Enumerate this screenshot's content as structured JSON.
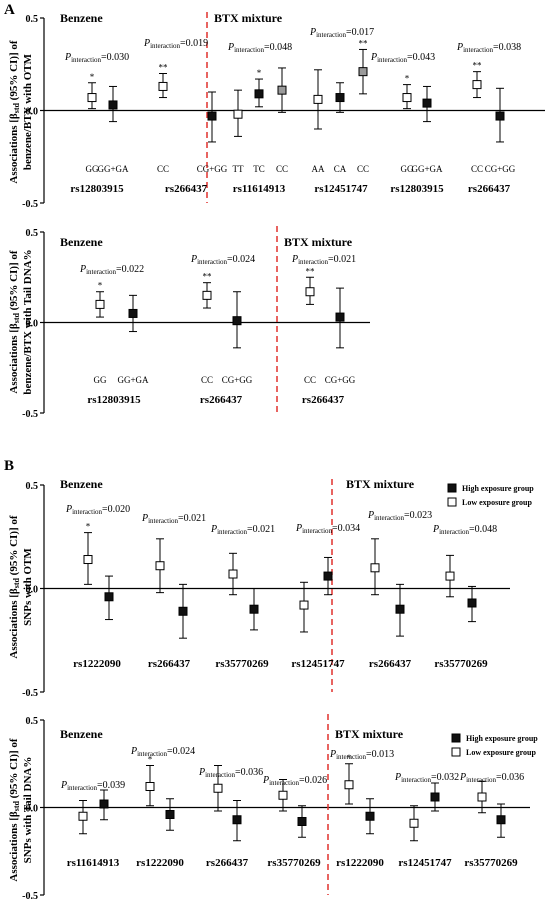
{
  "chart_data": [
    {
      "type": "scatter",
      "panel_letter": "A",
      "ylabel": "Associations [βstd (95% CI)] of benzene/BTX with OTM",
      "ylabel_parts": [
        "Associations [β",
        "std",
        " (95% CI)] of",
        "benzene/BTX with OTM"
      ],
      "yticks": [
        "0.5",
        "0.0",
        "-0.5"
      ],
      "ylim": [
        -0.5,
        0.5
      ],
      "sections": [
        "Benzene",
        "BTX mixture"
      ],
      "pvalue_prefix": "P",
      "pvalue_sub": "interaction",
      "groups": [
        {
          "snp": "rs12803915",
          "section": "Benzene",
          "p": "=0.030",
          "points": [
            {
              "label": "GG",
              "estimate": 0.07,
              "lower": 0.01,
              "upper": 0.15,
              "marker": "open",
              "sig": "*"
            },
            {
              "label": "GG+GA",
              "estimate": 0.03,
              "lower": -0.06,
              "upper": 0.13,
              "marker": "filled",
              "sig": ""
            }
          ]
        },
        {
          "snp": "rs266437",
          "section": "Benzene",
          "p": "=0.019",
          "points": [
            {
              "label": "CC",
              "estimate": 0.13,
              "lower": 0.07,
              "upper": 0.2,
              "marker": "open",
              "sig": "**"
            },
            {
              "label": "CG+GG",
              "estimate": -0.03,
              "lower": -0.17,
              "upper": 0.1,
              "marker": "filled",
              "sig": ""
            }
          ]
        },
        {
          "snp": "rs11614913",
          "section": "BTX mixture",
          "p": "=0.048",
          "points": [
            {
              "label": "TT",
              "estimate": -0.02,
              "lower": -0.14,
              "upper": 0.11,
              "marker": "open",
              "sig": ""
            },
            {
              "label": "TC",
              "estimate": 0.09,
              "lower": 0.02,
              "upper": 0.17,
              "marker": "filled",
              "sig": "*"
            },
            {
              "label": "CC",
              "estimate": 0.11,
              "lower": -0.01,
              "upper": 0.23,
              "marker": "gray",
              "sig": ""
            }
          ]
        },
        {
          "snp": "rs12451747",
          "section": "BTX mixture",
          "p": "=0.017",
          "points": [
            {
              "label": "AA",
              "estimate": 0.06,
              "lower": -0.1,
              "upper": 0.22,
              "marker": "open",
              "sig": ""
            },
            {
              "label": "CA",
              "estimate": 0.07,
              "lower": -0.01,
              "upper": 0.15,
              "marker": "filled",
              "sig": ""
            },
            {
              "label": "CC",
              "estimate": 0.21,
              "lower": 0.09,
              "upper": 0.33,
              "marker": "gray",
              "sig": "**"
            }
          ]
        },
        {
          "snp": "rs12803915",
          "section": "BTX mixture",
          "p": "=0.043",
          "points": [
            {
              "label": "GG",
              "estimate": 0.07,
              "lower": 0.01,
              "upper": 0.14,
              "marker": "open",
              "sig": "*"
            },
            {
              "label": "GG+GA",
              "estimate": 0.04,
              "lower": -0.06,
              "upper": 0.13,
              "marker": "filled",
              "sig": ""
            }
          ]
        },
        {
          "snp": "rs266437",
          "section": "BTX mixture",
          "p": "=0.038",
          "points": [
            {
              "label": "CC",
              "estimate": 0.14,
              "lower": 0.07,
              "upper": 0.21,
              "marker": "open",
              "sig": "**"
            },
            {
              "label": "CG+GG",
              "estimate": -0.03,
              "lower": -0.17,
              "upper": 0.12,
              "marker": "filled",
              "sig": ""
            }
          ]
        }
      ]
    },
    {
      "type": "scatter",
      "panel_letter": "",
      "ylabel": "Associations [βstd (95% CI)] of benzene/BTX with Tail DNA%",
      "ylabel_parts": [
        "Associations [β",
        "std",
        " (95% CI)] of",
        "benzene/BTX with Tail DNA%"
      ],
      "yticks": [
        "0.5",
        "0.0",
        "-0.5"
      ],
      "ylim": [
        -0.5,
        0.5
      ],
      "sections": [
        "Benzene",
        "BTX mixture"
      ],
      "pvalue_prefix": "P",
      "pvalue_sub": "interaction",
      "groups": [
        {
          "snp": "rs12803915",
          "section": "Benzene",
          "p": "=0.022",
          "points": [
            {
              "label": "GG",
              "estimate": 0.1,
              "lower": 0.03,
              "upper": 0.17,
              "marker": "open",
              "sig": "*"
            },
            {
              "label": "GG+GA",
              "estimate": 0.05,
              "lower": -0.05,
              "upper": 0.15,
              "marker": "filled",
              "sig": ""
            }
          ]
        },
        {
          "snp": "rs266437",
          "section": "Benzene",
          "p": "=0.024",
          "points": [
            {
              "label": "CC",
              "estimate": 0.15,
              "lower": 0.08,
              "upper": 0.22,
              "marker": "open",
              "sig": "**"
            },
            {
              "label": "CG+GG",
              "estimate": 0.01,
              "lower": -0.14,
              "upper": 0.17,
              "marker": "filled",
              "sig": ""
            }
          ]
        },
        {
          "snp": "rs266437",
          "section": "BTX mixture",
          "p": "=0.021",
          "points": [
            {
              "label": "CC",
              "estimate": 0.17,
              "lower": 0.1,
              "upper": 0.25,
              "marker": "open",
              "sig": "**"
            },
            {
              "label": "CG+GG",
              "estimate": 0.03,
              "lower": -0.14,
              "upper": 0.19,
              "marker": "filled",
              "sig": ""
            }
          ]
        }
      ]
    },
    {
      "type": "scatter",
      "panel_letter": "B",
      "ylabel": "Associations [βstd (95% CI)] of SNPs with OTM",
      "ylabel_parts": [
        "Associations [β",
        "std",
        " (95% CI)] of",
        "SNPs with OTM"
      ],
      "yticks": [
        "0.5",
        "0.0",
        "-0.5"
      ],
      "ylim": [
        -0.5,
        0.5
      ],
      "sections": [
        "Benzene",
        "BTX mixture"
      ],
      "legend": [
        {
          "marker": "filled",
          "name": "High exposure group"
        },
        {
          "marker": "open",
          "name": "Low exposure group"
        }
      ],
      "pvalue_prefix": "P",
      "pvalue_sub": "interaction",
      "groups": [
        {
          "snp": "rs1222090",
          "section": "Benzene",
          "p": "=0.020",
          "points": [
            {
              "marker": "open",
              "estimate": 0.14,
              "lower": 0.02,
              "upper": 0.27,
              "sig": "*"
            },
            {
              "marker": "filled",
              "estimate": -0.04,
              "lower": -0.15,
              "upper": 0.06,
              "sig": ""
            }
          ]
        },
        {
          "snp": "rs266437",
          "section": "Benzene",
          "p": "=0.021",
          "points": [
            {
              "marker": "open",
              "estimate": 0.11,
              "lower": -0.02,
              "upper": 0.24,
              "sig": ""
            },
            {
              "marker": "filled",
              "estimate": -0.11,
              "lower": -0.24,
              "upper": 0.02,
              "sig": ""
            }
          ]
        },
        {
          "snp": "rs35770269",
          "section": "Benzene",
          "p": "=0.021",
          "points": [
            {
              "marker": "open",
              "estimate": 0.07,
              "lower": -0.03,
              "upper": 0.17,
              "sig": ""
            },
            {
              "marker": "filled",
              "estimate": -0.1,
              "lower": -0.2,
              "upper": 0.0,
              "sig": ""
            }
          ]
        },
        {
          "snp": "rs12451747",
          "section": "BTX mixture",
          "p": "=0.034",
          "points": [
            {
              "marker": "open",
              "estimate": -0.08,
              "lower": -0.21,
              "upper": 0.03,
              "sig": ""
            },
            {
              "marker": "filled",
              "estimate": 0.06,
              "lower": -0.03,
              "upper": 0.15,
              "sig": ""
            }
          ]
        },
        {
          "snp": "rs266437",
          "section": "BTX mixture",
          "p": "=0.023",
          "points": [
            {
              "marker": "open",
              "estimate": 0.1,
              "lower": -0.03,
              "upper": 0.24,
              "sig": ""
            },
            {
              "marker": "filled",
              "estimate": -0.1,
              "lower": -0.23,
              "upper": 0.02,
              "sig": ""
            }
          ]
        },
        {
          "snp": "rs35770269",
          "section": "BTX mixture",
          "p": "=0.048",
          "points": [
            {
              "marker": "open",
              "estimate": 0.06,
              "lower": -0.04,
              "upper": 0.16,
              "sig": ""
            },
            {
              "marker": "filled",
              "estimate": -0.07,
              "lower": -0.16,
              "upper": 0.01,
              "sig": ""
            }
          ]
        }
      ]
    },
    {
      "type": "scatter",
      "panel_letter": "",
      "ylabel": "Associations [βstd (95% CI)] of SNPs with Tail DNA%",
      "ylabel_parts": [
        "Associations [β",
        "std",
        " (95% CI)] of",
        "SNPs with Tail DNA%"
      ],
      "yticks": [
        "0.5",
        "0.0",
        "-0.5"
      ],
      "ylim": [
        -0.5,
        0.5
      ],
      "sections": [
        "Benzene",
        "BTX mixture"
      ],
      "legend": [
        {
          "marker": "filled",
          "name": "High exposure group"
        },
        {
          "marker": "open",
          "name": "Low exposure group"
        }
      ],
      "pvalue_prefix": "P",
      "pvalue_sub": "interaction",
      "groups": [
        {
          "snp": "rs11614913",
          "section": "Benzene",
          "p": "=0.039",
          "points": [
            {
              "marker": "open",
              "estimate": -0.05,
              "lower": -0.15,
              "upper": 0.04,
              "sig": ""
            },
            {
              "marker": "filled",
              "estimate": 0.02,
              "lower": -0.07,
              "upper": 0.1,
              "sig": ""
            }
          ]
        },
        {
          "snp": "rs1222090",
          "section": "Benzene",
          "p": "=0.024",
          "points": [
            {
              "marker": "open",
              "estimate": 0.12,
              "lower": 0.01,
              "upper": 0.24,
              "sig": "*"
            },
            {
              "marker": "filled",
              "estimate": -0.04,
              "lower": -0.13,
              "upper": 0.05,
              "sig": ""
            }
          ]
        },
        {
          "snp": "rs266437",
          "section": "Benzene",
          "p": "=0.036",
          "points": [
            {
              "marker": "open",
              "estimate": 0.11,
              "lower": -0.02,
              "upper": 0.24,
              "sig": ""
            },
            {
              "marker": "filled",
              "estimate": -0.07,
              "lower": -0.19,
              "upper": 0.04,
              "sig": ""
            }
          ]
        },
        {
          "snp": "rs35770269",
          "section": "Benzene",
          "p": "=0.026",
          "points": [
            {
              "marker": "open",
              "estimate": 0.07,
              "lower": -0.02,
              "upper": 0.16,
              "sig": ""
            },
            {
              "marker": "filled",
              "estimate": -0.08,
              "lower": -0.17,
              "upper": 0.01,
              "sig": ""
            }
          ]
        },
        {
          "snp": "rs1222090",
          "section": "BTX mixture",
          "p": "=0.013",
          "points": [
            {
              "marker": "open",
              "estimate": 0.13,
              "lower": 0.02,
              "upper": 0.25,
              "sig": "*"
            },
            {
              "marker": "filled",
              "estimate": -0.05,
              "lower": -0.15,
              "upper": 0.05,
              "sig": ""
            }
          ]
        },
        {
          "snp": "rs12451747",
          "section": "BTX mixture",
          "p": "=0.032",
          "points": [
            {
              "marker": "open",
              "estimate": -0.09,
              "lower": -0.19,
              "upper": 0.01,
              "sig": ""
            },
            {
              "marker": "filled",
              "estimate": 0.06,
              "lower": -0.02,
              "upper": 0.14,
              "sig": ""
            }
          ]
        },
        {
          "snp": "rs35770269",
          "section": "BTX mixture",
          "p": "=0.036",
          "points": [
            {
              "marker": "open",
              "estimate": 0.06,
              "lower": -0.03,
              "upper": 0.15,
              "sig": ""
            },
            {
              "marker": "filled",
              "estimate": -0.07,
              "lower": -0.17,
              "upper": 0.02,
              "sig": ""
            }
          ]
        }
      ]
    }
  ],
  "colors": {
    "divider": "#e0312d",
    "marker_filled": "#111111",
    "marker_gray": "#9a9a9a",
    "axis": "#000000"
  }
}
